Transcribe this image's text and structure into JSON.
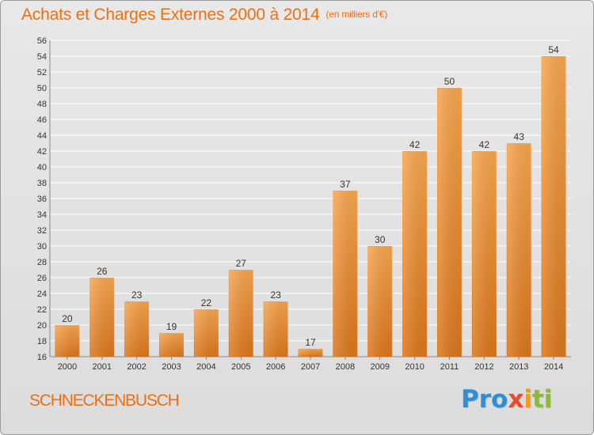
{
  "header": {
    "title": "Achats et Charges Externes 2000 à 2014",
    "unit": "(en milliers d'€)"
  },
  "footer": {
    "commune": "SCHNECKENBUSCH",
    "logo_parts": [
      "Pro",
      "x",
      "i",
      "ti"
    ]
  },
  "colors": {
    "title": "#ee6f12",
    "bar_light": "#f6a54f",
    "bar_dark": "#d9761c",
    "grid": "#ffffff",
    "axis_text": "#333333"
  },
  "chart_data": {
    "type": "bar",
    "title": "Achats et Charges Externes 2000 à 2014",
    "subtitle": "(en milliers d'€)",
    "xlabel": "",
    "ylabel": "",
    "categories": [
      "2000",
      "2001",
      "2002",
      "2003",
      "2004",
      "2005",
      "2006",
      "2007",
      "2008",
      "2009",
      "2010",
      "2011",
      "2012",
      "2013",
      "2014"
    ],
    "values": [
      20,
      26,
      23,
      19,
      22,
      27,
      23,
      17,
      37,
      30,
      42,
      50,
      42,
      43,
      54
    ],
    "ylim": [
      16,
      56
    ],
    "yticks": [
      16,
      18,
      20,
      22,
      24,
      26,
      28,
      30,
      32,
      34,
      36,
      38,
      40,
      42,
      44,
      46,
      48,
      50,
      52,
      54,
      56
    ],
    "grid": true,
    "legend": "none",
    "data_labels": true
  }
}
